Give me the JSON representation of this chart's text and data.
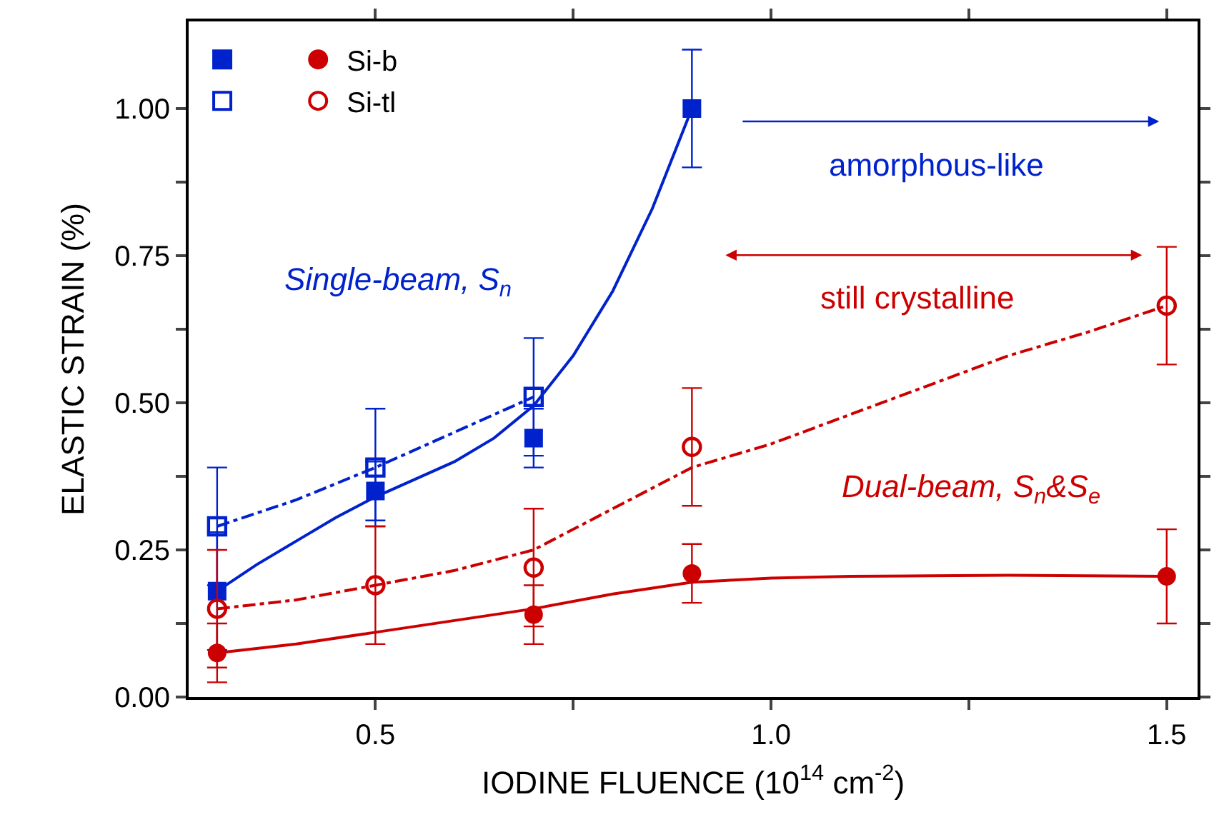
{
  "chart_data": {
    "type": "scatter",
    "xlabel": "IODINE FLUENCE (10$^{14}$ cm$^{-2}$)",
    "ylabel": "ELASTIC STRAIN (%)",
    "xlim": [
      0.264,
      1.539
    ],
    "ylim": [
      0,
      1.148
    ],
    "xticks": [
      {
        "value": 0.5,
        "label": "0.5"
      },
      {
        "value": 0.75,
        "label": null
      },
      {
        "value": 1.0,
        "label": "1.0"
      },
      {
        "value": 1.25,
        "label": null
      },
      {
        "value": 1.5,
        "label": "1.5"
      }
    ],
    "yticks": [
      {
        "value": 0,
        "label": "0.00"
      },
      {
        "value": 0.125,
        "label": null
      },
      {
        "value": 0.25,
        "label": "0.25"
      },
      {
        "value": 0.375,
        "label": null
      },
      {
        "value": 0.5,
        "label": "0.50"
      },
      {
        "value": 0.625,
        "label": null
      },
      {
        "value": 0.75,
        "label": "0.75"
      },
      {
        "value": 0.875,
        "label": null
      },
      {
        "value": 1.0,
        "label": "1.00"
      }
    ],
    "legend": "top left",
    "series": [
      {
        "type": "scatter",
        "color": "#0022cc",
        "marker": "square",
        "line_style": "solid",
        "x": [
          0.3,
          0.5,
          0.7,
          0.9
        ],
        "values": [
          0.18,
          0.35,
          0.44,
          1.0
        ],
        "errors": [
          0.1,
          0.05,
          0.05,
          0.1
        ]
      },
      {
        "type": "scatter",
        "name": "Si-b",
        "color": "#cc0000",
        "marker": "circle",
        "line_style": "solid",
        "x": [
          0.3,
          0.5,
          0.7,
          0.9,
          1.5
        ],
        "values": [
          0.075,
          null,
          0.14,
          0.21,
          0.205
        ],
        "errors": [
          0.05,
          null,
          0.05,
          0.05,
          0.08
        ]
      },
      {
        "type": "scatter",
        "color": "#0022cc",
        "marker": "square",
        "line_style": "dashed",
        "x": [
          0.3,
          0.5,
          0.7
        ],
        "values": [
          0.29,
          0.39,
          0.51
        ],
        "errors": [
          0.1,
          0.1,
          0.1
        ]
      },
      {
        "type": "scatter",
        "name": "Si-tl",
        "color": "#cc0000",
        "marker": "circle",
        "line_style": "dashed",
        "x": [
          0.3,
          0.5,
          0.7,
          0.9,
          1.5
        ],
        "values": [
          0.15,
          0.19,
          0.22,
          0.425,
          0.665
        ],
        "errors": [
          0.1,
          0.1,
          0.1,
          0.1,
          0.1
        ]
      },
      {
        "type": "line",
        "color": "#0022cc",
        "line_style": "solid",
        "x": [
          0.3,
          0.35,
          0.4,
          0.45,
          0.5,
          0.55,
          0.6,
          0.65,
          0.7,
          0.75,
          0.8,
          0.85,
          0.9
        ],
        "values": [
          0.18,
          0.225,
          0.265,
          0.305,
          0.34,
          0.37,
          0.4,
          0.44,
          0.495,
          0.58,
          0.69,
          0.83,
          1.0
        ]
      },
      {
        "type": "line",
        "color": "#0022cc",
        "line_style": "dashed",
        "x": [
          0.3,
          0.4,
          0.5,
          0.6,
          0.7
        ],
        "values": [
          0.29,
          0.335,
          0.39,
          0.45,
          0.51
        ]
      },
      {
        "type": "line",
        "color": "#cc0000",
        "line_style": "dashed",
        "x": [
          0.3,
          0.4,
          0.5,
          0.6,
          0.7,
          0.8,
          0.9,
          1.0,
          1.1,
          1.2,
          1.3,
          1.4,
          1.5
        ],
        "values": [
          0.15,
          0.165,
          0.19,
          0.215,
          0.25,
          0.32,
          0.39,
          0.43,
          0.48,
          0.53,
          0.58,
          0.62,
          0.665
        ]
      },
      {
        "type": "line",
        "color": "#cc0000",
        "line_style": "solid",
        "x": [
          0.3,
          0.4,
          0.5,
          0.6,
          0.7,
          0.8,
          0.9,
          1.0,
          1.1,
          1.2,
          1.3,
          1.4,
          1.5
        ],
        "values": [
          0.075,
          0.09,
          0.11,
          0.13,
          0.15,
          0.175,
          0.195,
          0.202,
          0.205,
          0.206,
          0.207,
          0.206,
          0.205
        ]
      }
    ],
    "annotations": [
      "Single-beam, S$_{n}$",
      "amorphous-like",
      "still crystalline",
      "Dual-beam, S$_{n}$&S$_{e}$"
    ]
  }
}
